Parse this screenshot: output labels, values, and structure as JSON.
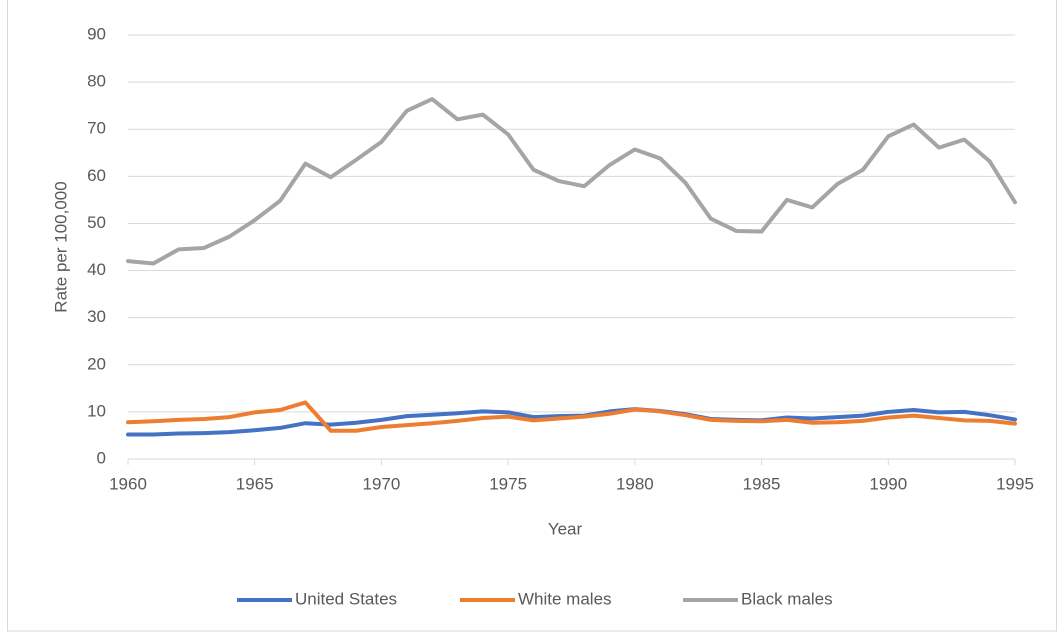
{
  "chart_data": {
    "type": "line",
    "x": [
      1960,
      1961,
      1962,
      1963,
      1964,
      1965,
      1966,
      1967,
      1968,
      1969,
      1970,
      1971,
      1972,
      1973,
      1974,
      1975,
      1976,
      1977,
      1978,
      1979,
      1980,
      1981,
      1982,
      1983,
      1984,
      1985,
      1986,
      1987,
      1988,
      1989,
      1990,
      1991,
      1992,
      1993,
      1994,
      1995
    ],
    "series": [
      {
        "name": "United States",
        "color": "#4472c4",
        "values": [
          5.2,
          5.2,
          5.4,
          5.5,
          5.7,
          6.1,
          6.6,
          7.6,
          7.3,
          7.7,
          8.3,
          9.1,
          9.4,
          9.7,
          10.1,
          9.9,
          8.9,
          9.1,
          9.2,
          10.1,
          10.6,
          10.2,
          9.5,
          8.5,
          8.3,
          8.2,
          8.8,
          8.6,
          8.9,
          9.2,
          10,
          10.4,
          9.9,
          10,
          9.3,
          8.4
        ]
      },
      {
        "name": "White males",
        "color": "#ed7d31",
        "values": [
          7.8,
          8,
          8.3,
          8.5,
          8.9,
          9.9,
          10.4,
          12,
          6,
          6,
          6.8,
          7.2,
          7.6,
          8.1,
          8.7,
          9,
          8.2,
          8.6,
          9,
          9.6,
          10.5,
          10.1,
          9.3,
          8.3,
          8.1,
          8,
          8.3,
          7.7,
          7.8,
          8.1,
          8.8,
          9.2,
          8.7,
          8.2,
          8.1,
          7.5
        ]
      },
      {
        "name": "Black males",
        "color": "#a5a5a5",
        "values": [
          42,
          41.5,
          44.5,
          44.8,
          47.2,
          50.7,
          54.8,
          62.7,
          59.8,
          63.5,
          67.3,
          73.9,
          76.4,
          72.1,
          73.1,
          68.9,
          61.4,
          59,
          57.9,
          62.4,
          65.7,
          63.8,
          58.6,
          51,
          48.4,
          48.3,
          55,
          53.4,
          58.4,
          61.4,
          68.5,
          71,
          66.1,
          67.8,
          63.2,
          54.5
        ]
      }
    ],
    "x_label": "Year",
    "y_label": "Rate per 100,000",
    "xlim": [
      1960,
      1995
    ],
    "xticks": [
      1960,
      1965,
      1970,
      1975,
      1980,
      1985,
      1990,
      1995
    ],
    "ylim": [
      0,
      90
    ],
    "yticks": [
      0,
      10,
      20,
      30,
      40,
      50,
      60,
      70,
      80,
      90
    ],
    "grid": true,
    "legend": "bottom"
  }
}
